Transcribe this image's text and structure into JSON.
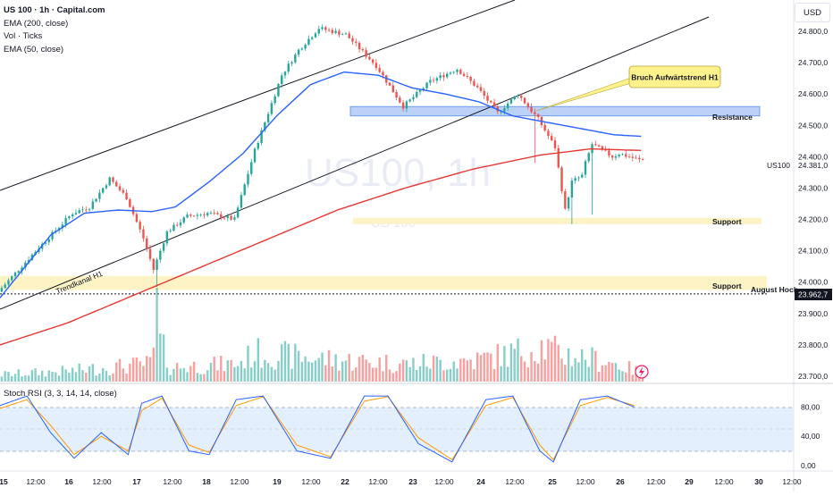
{
  "header": {
    "symbol_title": "US 100 · 1h · Capital.com",
    "indicators": [
      "EMA (200, close)",
      "Vol · Ticks",
      "EMA (50, close)"
    ],
    "currency": "USD"
  },
  "watermark": {
    "big": "US100, 1h",
    "small": "US 100"
  },
  "price_axis": {
    "ticks": [
      "24.800,0",
      "24.700,0",
      "24.600,0",
      "24.500,0",
      "24.400,0",
      "24.300,0",
      "24.200,0",
      "24.100,0",
      "24.000,0",
      "23.900,0",
      "23.800,0",
      "23.700,0"
    ],
    "last_price_label": "24.381,0",
    "last_price_symbol": "US100",
    "dotted_level_label": "23.962,7"
  },
  "time_axis": {
    "ticks": [
      "15",
      "12:00",
      "16",
      "12:00",
      "17",
      "12:00",
      "18",
      "12:00",
      "19",
      "12:00",
      "22",
      "12:00",
      "23",
      "12:00",
      "24",
      "12:00",
      "25",
      "12:00",
      "26",
      "12:00",
      "29",
      "12:00",
      "30",
      "12:00"
    ]
  },
  "annotations": {
    "callout": "Bruch Aufwärtstrend H1",
    "resistance": "Resistance",
    "support_upper": "Support",
    "support_lower": "Support",
    "august_high": "August Hoch",
    "channel_label": "Trendkanal H1"
  },
  "rsi": {
    "title": "Stoch RSI (3, 3, 14, 14, close)",
    "ticks": [
      "80,00",
      "40,00",
      "0,00"
    ]
  },
  "colors": {
    "up": "#26a69a",
    "down": "#ef5350",
    "ema50": "#2962ff",
    "ema200": "#e53935",
    "resistance_zone": "#bbd1f5",
    "support_zone": "#fdf3c4",
    "callout_bg": "#fff28c"
  },
  "chart_data": {
    "type": "candlestick",
    "interval": "1h",
    "y_range": [
      23650,
      24850
    ],
    "resistance_zone": [
      24530,
      24560
    ],
    "support_zone_upper": [
      24185,
      24205
    ],
    "support_zone_lower": [
      23975,
      24020
    ],
    "august_high": 23962.7,
    "last_price": 24381.0,
    "path_points": [
      [
        0,
        23970
      ],
      [
        12,
        24110
      ],
      [
        22,
        24220
      ],
      [
        27,
        24240
      ],
      [
        33,
        24330
      ],
      [
        38,
        24270
      ],
      [
        43,
        24140
      ],
      [
        46,
        24040
      ],
      [
        50,
        24160
      ],
      [
        56,
        24210
      ],
      [
        62,
        24220
      ],
      [
        70,
        24200
      ],
      [
        76,
        24420
      ],
      [
        84,
        24660
      ],
      [
        89,
        24740
      ],
      [
        95,
        24810
      ],
      [
        103,
        24790
      ],
      [
        112,
        24690
      ],
      [
        120,
        24560
      ],
      [
        128,
        24640
      ],
      [
        136,
        24680
      ],
      [
        142,
        24620
      ],
      [
        148,
        24540
      ],
      [
        154,
        24600
      ],
      [
        160,
        24520
      ],
      [
        165,
        24430
      ],
      [
        168,
        24230
      ],
      [
        170,
        24320
      ],
      [
        173,
        24340
      ],
      [
        174,
        24380
      ],
      [
        176,
        24440
      ],
      [
        182,
        24400
      ],
      [
        184,
        24410
      ],
      [
        190,
        24390
      ]
    ],
    "ema50_points": [
      [
        0,
        23950
      ],
      [
        15,
        24150
      ],
      [
        25,
        24220
      ],
      [
        35,
        24230
      ],
      [
        45,
        24225
      ],
      [
        52,
        24240
      ],
      [
        62,
        24320
      ],
      [
        72,
        24410
      ],
      [
        82,
        24530
      ],
      [
        92,
        24630
      ],
      [
        102,
        24670
      ],
      [
        112,
        24660
      ],
      [
        122,
        24620
      ],
      [
        132,
        24600
      ],
      [
        142,
        24575
      ],
      [
        152,
        24530
      ],
      [
        162,
        24510
      ],
      [
        172,
        24490
      ],
      [
        182,
        24470
      ],
      [
        190,
        24465
      ]
    ],
    "ema200_points": [
      [
        0,
        23800
      ],
      [
        20,
        23870
      ],
      [
        40,
        23960
      ],
      [
        60,
        24050
      ],
      [
        80,
        24140
      ],
      [
        100,
        24230
      ],
      [
        120,
        24300
      ],
      [
        140,
        24360
      ],
      [
        160,
        24405
      ],
      [
        175,
        24425
      ],
      [
        190,
        24420
      ]
    ],
    "stoch_k_points": [
      [
        0,
        82
      ],
      [
        8,
        95
      ],
      [
        15,
        45
      ],
      [
        22,
        10
      ],
      [
        30,
        45
      ],
      [
        38,
        15
      ],
      [
        42,
        85
      ],
      [
        48,
        95
      ],
      [
        56,
        20
      ],
      [
        62,
        15
      ],
      [
        70,
        90
      ],
      [
        78,
        95
      ],
      [
        88,
        20
      ],
      [
        98,
        10
      ],
      [
        108,
        95
      ],
      [
        115,
        95
      ],
      [
        124,
        30
      ],
      [
        134,
        5
      ],
      [
        144,
        90
      ],
      [
        152,
        95
      ],
      [
        160,
        20
      ],
      [
        164,
        5
      ],
      [
        172,
        90
      ],
      [
        180,
        95
      ],
      [
        188,
        80
      ]
    ],
    "stoch_d_points": [
      [
        0,
        78
      ],
      [
        8,
        90
      ],
      [
        15,
        55
      ],
      [
        22,
        15
      ],
      [
        30,
        40
      ],
      [
        38,
        20
      ],
      [
        42,
        75
      ],
      [
        48,
        92
      ],
      [
        56,
        28
      ],
      [
        62,
        18
      ],
      [
        70,
        82
      ],
      [
        78,
        94
      ],
      [
        88,
        28
      ],
      [
        98,
        12
      ],
      [
        108,
        88
      ],
      [
        115,
        94
      ],
      [
        124,
        38
      ],
      [
        134,
        8
      ],
      [
        144,
        82
      ],
      [
        152,
        93
      ],
      [
        160,
        28
      ],
      [
        164,
        8
      ],
      [
        172,
        82
      ],
      [
        180,
        93
      ],
      [
        188,
        82
      ]
    ],
    "volume_profile": [
      [
        0,
        10
      ],
      [
        20,
        15
      ],
      [
        44,
        25
      ],
      [
        46,
        65
      ],
      [
        50,
        20
      ],
      [
        70,
        25
      ],
      [
        75,
        40
      ],
      [
        100,
        30
      ],
      [
        120,
        25
      ],
      [
        140,
        30
      ],
      [
        150,
        38
      ],
      [
        160,
        50
      ],
      [
        165,
        40
      ],
      [
        180,
        28
      ],
      [
        190,
        12
      ]
    ]
  }
}
